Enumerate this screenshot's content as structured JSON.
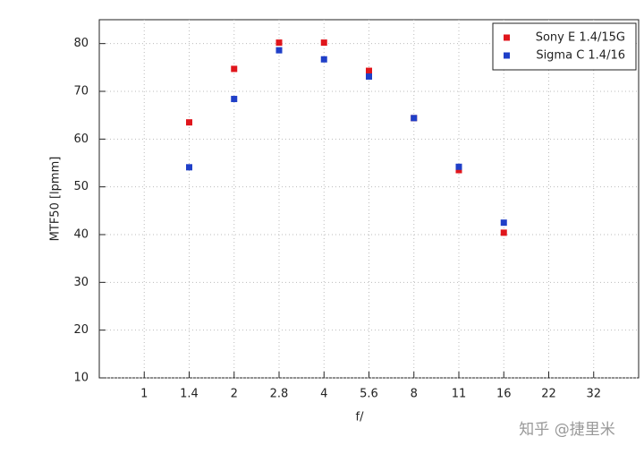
{
  "chart_data": {
    "type": "scatter",
    "x_label": "f/",
    "y_label": "MTF50 [lpmm]",
    "categories": [
      "1",
      "1.4",
      "2",
      "2.8",
      "4",
      "5.6",
      "8",
      "11",
      "16",
      "22",
      "32"
    ],
    "series": [
      {
        "name": "Sony E 1.4/15G",
        "color": "#e0161c",
        "values": [
          null,
          63.5,
          74.7,
          80.2,
          80.2,
          74.3,
          64.4,
          53.5,
          40.4,
          null,
          null
        ]
      },
      {
        "name": "Sigma C 1.4/16",
        "color": "#1f3fc8",
        "values": [
          null,
          54.1,
          68.4,
          78.6,
          76.7,
          73.1,
          64.4,
          54.2,
          42.5,
          null,
          null
        ]
      }
    ],
    "ylim": [
      10,
      85
    ],
    "yticks": [
      10,
      20,
      30,
      40,
      50,
      60,
      70,
      80
    ],
    "grid": true,
    "legend": "upper right",
    "watermark": "知乎 @捷里米"
  }
}
